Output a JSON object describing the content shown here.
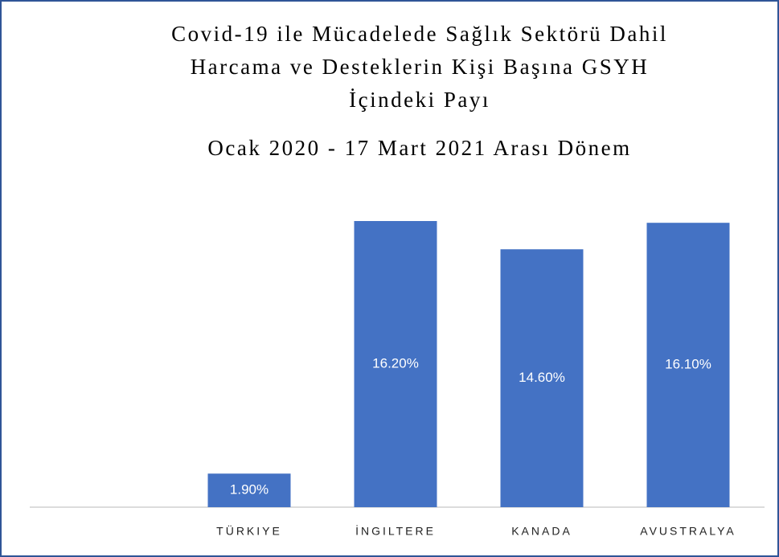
{
  "chart_data": {
    "type": "bar",
    "title": [
      "Covid-19 ile Mücadelede Sağlık Sektörü Dahil",
      "Harcama ve Desteklerin Kişi Başına GSYH",
      "İçindeki Payı"
    ],
    "subtitle": "Ocak 2020 - 17 Mart 2021 Arası Dönem",
    "categories": [
      null,
      "TÜRKIYE",
      "İNGILTERE",
      "KANADA",
      "AVUSTRALYA"
    ],
    "values": [
      null,
      1.9,
      16.2,
      14.6,
      16.1
    ],
    "value_labels": [
      null,
      "1.90%",
      "16.20%",
      "14.60%",
      "16.10%"
    ],
    "color": "#4472c4"
  }
}
